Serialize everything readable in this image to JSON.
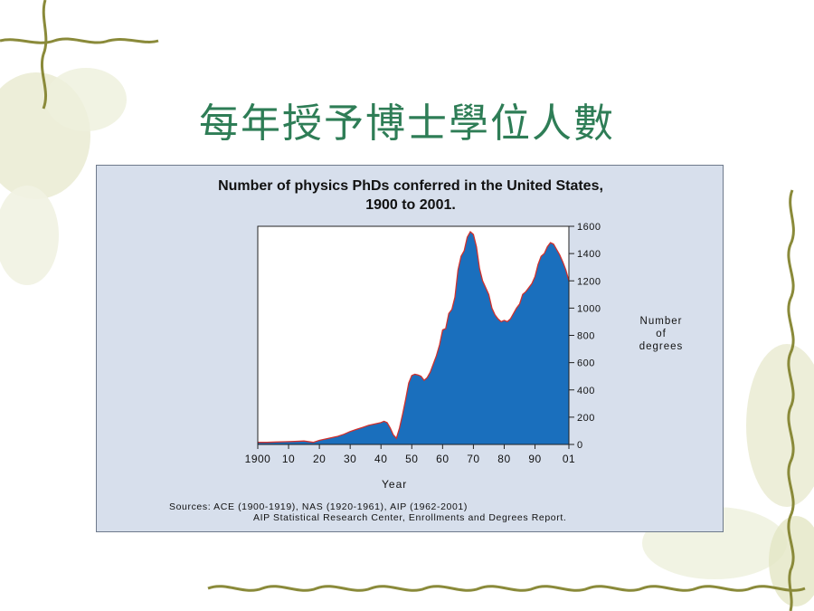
{
  "slide": {
    "title": "每年授予博士學位人數"
  },
  "chart_data": {
    "type": "area",
    "title_line1": "Number of physics PhDs conferred in the United States,",
    "title_line2": "1900 to 2001.",
    "xlabel": "Year",
    "ylabel_lines": [
      "Number",
      "of",
      "degrees"
    ],
    "xlim": [
      1900,
      2001
    ],
    "ylim": [
      0,
      1600
    ],
    "x_ticks": [
      1900,
      1910,
      1920,
      1930,
      1940,
      1950,
      1960,
      1970,
      1980,
      1990,
      2001
    ],
    "x_tick_labels": [
      "1900",
      "10",
      "20",
      "30",
      "40",
      "50",
      "60",
      "70",
      "80",
      "90",
      "01"
    ],
    "y_ticks": [
      0,
      200,
      400,
      600,
      800,
      1000,
      1200,
      1400,
      1600
    ],
    "y_tick_labels": [
      "0",
      "200",
      "400",
      "600",
      "800",
      "1000",
      "1200",
      "1400",
      "1600"
    ],
    "y_axis_side": "right",
    "grid": false,
    "fill_color": "#1a6fbd",
    "line_color": "#d0312d",
    "series": [
      {
        "x": [
          1900,
          1903,
          1906,
          1909,
          1912,
          1915,
          1918,
          1920,
          1923,
          1926,
          1928,
          1930,
          1932,
          1934,
          1936,
          1938,
          1940,
          1941,
          1942,
          1943,
          1944,
          1945,
          1946,
          1947,
          1948,
          1949,
          1950,
          1951,
          1952,
          1953,
          1954,
          1955,
          1956,
          1957,
          1958,
          1959,
          1960,
          1961,
          1962,
          1963,
          1964,
          1965,
          1966,
          1967,
          1968,
          1969,
          1970,
          1971,
          1972,
          1973,
          1974,
          1975,
          1976,
          1977,
          1978,
          1979,
          1980,
          1981,
          1982,
          1983,
          1984,
          1985,
          1986,
          1987,
          1988,
          1989,
          1990,
          1991,
          1992,
          1993,
          1994,
          1995,
          1996,
          1997,
          1998,
          1999,
          2000,
          2001
        ],
        "y": [
          15,
          15,
          18,
          20,
          22,
          25,
          15,
          30,
          45,
          60,
          75,
          95,
          110,
          125,
          140,
          150,
          160,
          170,
          160,
          120,
          70,
          45,
          120,
          220,
          330,
          450,
          505,
          515,
          510,
          500,
          470,
          490,
          530,
          590,
          650,
          730,
          840,
          850,
          960,
          990,
          1080,
          1280,
          1380,
          1420,
          1520,
          1560,
          1540,
          1450,
          1290,
          1200,
          1150,
          1100,
          1000,
          950,
          920,
          900,
          910,
          900,
          920,
          960,
          1000,
          1030,
          1100,
          1120,
          1150,
          1180,
          1230,
          1320,
          1380,
          1400,
          1450,
          1480,
          1470,
          1430,
          1390,
          1340,
          1280,
          1200
        ]
      }
    ],
    "sources_line1": "Sources: ACE (1900-1919), NAS (1920-1961), AIP (1962-2001)",
    "sources_line2": "AIP Statistical Research Center, Enrollments and Degrees Report."
  },
  "colors": {
    "title": "#2e7d56",
    "panel_background": "#d7dfec",
    "plot_background": "#ffffff",
    "decoration_vine": "#8a8a3a"
  }
}
